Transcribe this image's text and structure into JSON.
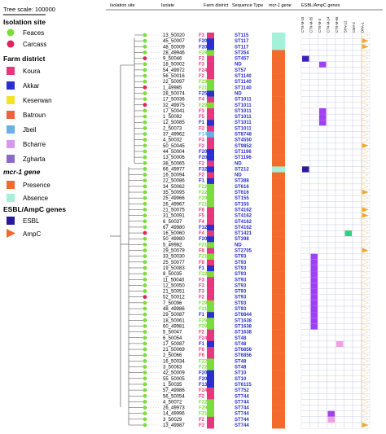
{
  "tree_scale_label": "Tree scale: 100000",
  "headers": {
    "isolation_site": "Isolation site",
    "isolate": "Isolate",
    "farm_district": "Farm district",
    "sequence_type": "Sequence Type",
    "mcr_gene": "mcr-1 gene",
    "esbl_genes": "ESBL/AmpC genes"
  },
  "gene_columns": [
    "CTX-M-15",
    "CTX-M-55",
    "CTX-M-3",
    "CTX-M-14",
    "CTX-M-65",
    "SHV-12",
    "CMY-2",
    "DHA-1"
  ],
  "colors": {
    "feaces": "#7ddc3c",
    "carcass": "#e0245e",
    "presence": "#f26b2c",
    "absence": "#a5f0d8",
    "esbl": "#2a1a9a",
    "ampc": "#f5a623",
    "esbl_blue": "#3a20c0",
    "esbl_purple": "#a040f0",
    "esbl_pink": "#f0a0e0",
    "esbl_green": "#30d080"
  },
  "legend": {
    "isolation_site": {
      "title": "Isolation site",
      "items": [
        {
          "label": "Feaces",
          "color": "#7ddc3c"
        },
        {
          "label": "Carcass",
          "color": "#e0245e"
        }
      ]
    },
    "farm_district": {
      "title": "Farm district",
      "items": [
        {
          "label": "Koura",
          "color": "#e8367e"
        },
        {
          "label": "Akkar",
          "color": "#2b2fcf"
        },
        {
          "label": "Keserwan",
          "color": "#f5e12a"
        },
        {
          "label": "Batroun",
          "color": "#f0623a"
        },
        {
          "label": "Jbeil",
          "color": "#6ab0e8"
        },
        {
          "label": "Bcharre",
          "color": "#d89ae8"
        },
        {
          "label": "Zgharta",
          "color": "#8a6cc8"
        }
      ]
    },
    "mcr_gene": {
      "title": "mcr-1 gene",
      "items": [
        {
          "label": "Presence",
          "color": "#f26b2c"
        },
        {
          "label": "Absence",
          "color": "#a5f0d8"
        }
      ]
    },
    "esbl_genes": {
      "title": "ESBL/AmpC genes",
      "items": [
        {
          "label": "ESBL",
          "color": "#2a1a9a",
          "shape": "square"
        },
        {
          "label": "AmpC",
          "color": "#f5a623",
          "shape": "triangle"
        }
      ]
    }
  },
  "farm_colors": {
    "F3": "#e8367e",
    "F20": "#2b2fcf",
    "F29": "#7ddc3c",
    "F2": "#e8367e",
    "F24": "#e8367e",
    "F21": "#7ddc3c",
    "F25": "#2b2fcf",
    "F4": "#e8367e",
    "F8": "#e8367e",
    "F5": "#e8367e",
    "F1": "#2b2fcf",
    "F14": "#6ab0e8",
    "F32": "#2b2fcf",
    "F22": "#7ddc3c",
    "F6": "#e8367e",
    "F13": "#2b2fcf"
  },
  "rows": [
    {
      "iso": "13_50020",
      "site": "feaces",
      "farm": "F3",
      "st": "ST115",
      "mcr": "absence",
      "genes": []
    },
    {
      "iso": "45_50007",
      "site": "feaces",
      "farm": "F20",
      "st": "ST117",
      "mcr": "absence",
      "genes": [
        {
          "col": 7,
          "t": "ampc"
        }
      ]
    },
    {
      "iso": "48_50009",
      "site": "feaces",
      "farm": "F20",
      "st": "ST117",
      "mcr": "absence",
      "genes": [
        {
          "col": 7,
          "t": "ampc"
        }
      ]
    },
    {
      "iso": "28_49946",
      "site": "feaces",
      "farm": "F29",
      "st": "ST354",
      "mcr": "presence",
      "genes": []
    },
    {
      "iso": "9_50046",
      "site": "carcass",
      "farm": "F2",
      "st": "ST457",
      "mcr": "presence",
      "genes": [
        {
          "col": 0,
          "t": "esbl_blue"
        }
      ]
    },
    {
      "iso": "18_50002",
      "site": "feaces",
      "farm": "F3",
      "st": "ND",
      "mcr": "presence",
      "genes": [
        {
          "col": 2,
          "t": "esbl_purple"
        }
      ]
    },
    {
      "iso": "54_49972",
      "site": "feaces",
      "farm": "F24",
      "st": "ST57",
      "mcr": "presence",
      "genes": []
    },
    {
      "iso": "56_50016",
      "site": "feaces",
      "farm": "F2",
      "st": "ST1140",
      "mcr": "presence",
      "genes": []
    },
    {
      "iso": "22_50097",
      "site": "feaces",
      "farm": "F29",
      "st": "ST1140",
      "mcr": "presence",
      "genes": []
    },
    {
      "iso": "1_49985",
      "site": "carcass",
      "farm": "F21",
      "st": "ST1140",
      "mcr": "presence",
      "genes": []
    },
    {
      "iso": "28_50074",
      "site": "feaces",
      "farm": "F25",
      "st": "ND",
      "mcr": "presence",
      "genes": []
    },
    {
      "iso": "17_50036",
      "site": "feaces",
      "farm": "F4",
      "st": "ST1011",
      "mcr": "presence",
      "genes": []
    },
    {
      "iso": "32_49975",
      "site": "carcass",
      "farm": "F29",
      "st": "ST1011",
      "mcr": "presence",
      "genes": []
    },
    {
      "iso": "17_50041",
      "site": "feaces",
      "farm": "F3",
      "st": "ST1011",
      "mcr": "presence",
      "genes": [
        {
          "col": 2,
          "t": "esbl_purple"
        }
      ]
    },
    {
      "iso": "1_50092",
      "site": "feaces",
      "farm": "F5",
      "st": "ST1011",
      "mcr": "presence",
      "genes": [
        {
          "col": 2,
          "t": "esbl_purple"
        }
      ]
    },
    {
      "iso": "12_50085",
      "site": "feaces",
      "farm": "F1",
      "st": "ST1011",
      "mcr": "presence",
      "genes": [
        {
          "col": 2,
          "t": "esbl_purple"
        }
      ]
    },
    {
      "iso": "2_50073",
      "site": "feaces",
      "farm": "F2",
      "st": "ST1011",
      "mcr": "presence",
      "genes": []
    },
    {
      "iso": "37_49962",
      "site": "feaces",
      "farm": "F14",
      "st": "ST8748",
      "mcr": "presence",
      "genes": []
    },
    {
      "iso": "4_50032",
      "site": "feaces",
      "farm": "F3",
      "st": "ST4550",
      "mcr": "presence",
      "genes": []
    },
    {
      "iso": "50_50045",
      "site": "feaces",
      "farm": "F2",
      "st": "ST9852",
      "mcr": "presence",
      "genes": [
        {
          "col": 7,
          "t": "ampc"
        }
      ]
    },
    {
      "iso": "44_50004",
      "site": "feaces",
      "farm": "F20",
      "st": "ST1196",
      "mcr": "presence",
      "genes": []
    },
    {
      "iso": "13_50006",
      "site": "feaces",
      "farm": "F20",
      "st": "ST1196",
      "mcr": "presence",
      "genes": []
    },
    {
      "iso": "38_50065",
      "site": "feaces",
      "farm": "F2",
      "st": "ND",
      "mcr": "presence",
      "genes": []
    },
    {
      "iso": "66_49977",
      "site": "feaces",
      "farm": "F32",
      "st": "ST212",
      "mcr": "absence",
      "genes": [
        {
          "col": 0,
          "t": "esbl"
        }
      ]
    },
    {
      "iso": "16_50094",
      "site": "feaces",
      "farm": "F2",
      "st": "ND",
      "mcr": "presence",
      "genes": []
    },
    {
      "iso": "22_50086",
      "site": "feaces",
      "farm": "F1",
      "st": "ST388",
      "mcr": "presence",
      "genes": []
    },
    {
      "iso": "34_50062",
      "site": "feaces",
      "farm": "F22",
      "st": "ST616",
      "mcr": "presence",
      "genes": []
    },
    {
      "iso": "35_50095",
      "site": "feaces",
      "farm": "F22",
      "st": "ST616",
      "mcr": "presence",
      "genes": [
        {
          "col": 7,
          "t": "ampc"
        }
      ]
    },
    {
      "iso": "25_49966",
      "site": "feaces",
      "farm": "F29",
      "st": "ST155",
      "mcr": "presence",
      "genes": []
    },
    {
      "iso": "26_49967",
      "site": "feaces",
      "farm": "F21",
      "st": "ST155",
      "mcr": "presence",
      "genes": []
    },
    {
      "iso": "21_50075",
      "site": "feaces",
      "farm": "F8",
      "st": "ST4162",
      "mcr": "presence",
      "genes": [
        {
          "col": 7,
          "t": "ampc"
        }
      ]
    },
    {
      "iso": "31_50091",
      "site": "feaces",
      "farm": "F5",
      "st": "ST4162",
      "mcr": "presence",
      "genes": [
        {
          "col": 7,
          "t": "ampc"
        }
      ]
    },
    {
      "iso": "6_50037",
      "site": "feaces",
      "farm": "F4",
      "st": "ST4162",
      "mcr": "presence",
      "genes": []
    },
    {
      "iso": "67_49980",
      "site": "feaces",
      "farm": "F32",
      "st": "ST4162",
      "mcr": "presence",
      "genes": []
    },
    {
      "iso": "16_50060",
      "site": "carcass",
      "farm": "F4",
      "st": "ST1421",
      "mcr": "presence",
      "genes": [
        {
          "col": 5,
          "t": "esbl_green"
        }
      ]
    },
    {
      "iso": "50_49980",
      "site": "feaces",
      "farm": "F20",
      "st": "ST398",
      "mcr": "presence",
      "genes": []
    },
    {
      "iso": "5_49982",
      "site": "feaces",
      "farm": "F21",
      "st": "ND",
      "mcr": "presence",
      "genes": []
    },
    {
      "iso": "29_50079",
      "site": "feaces",
      "farm": "F8",
      "st": "ST2705",
      "mcr": "presence",
      "genes": [
        {
          "col": 7,
          "t": "ampc"
        }
      ]
    },
    {
      "iso": "33_50030",
      "site": "feaces",
      "farm": "F21",
      "st": "ST93",
      "mcr": "presence",
      "genes": [
        {
          "col": 1,
          "t": "esbl_purple"
        }
      ]
    },
    {
      "iso": "25_50077",
      "site": "feaces",
      "farm": "F8",
      "st": "ST93",
      "mcr": "presence",
      "genes": [
        {
          "col": 1,
          "t": "esbl_purple"
        }
      ]
    },
    {
      "iso": "19_50083",
      "site": "feaces",
      "farm": "F1",
      "st": "ST93",
      "mcr": "presence",
      "genes": [
        {
          "col": 1,
          "t": "esbl_purple"
        }
      ]
    },
    {
      "iso": "8_50035",
      "site": "feaces",
      "farm": "F22",
      "st": "ST93",
      "mcr": "presence",
      "genes": [
        {
          "col": 1,
          "t": "esbl_purple"
        }
      ]
    },
    {
      "iso": "11_50040",
      "site": "feaces",
      "farm": "F3",
      "st": "ST93",
      "mcr": "presence",
      "genes": [
        {
          "col": 1,
          "t": "esbl_purple"
        }
      ]
    },
    {
      "iso": "12_50050",
      "site": "feaces",
      "farm": "F3",
      "st": "ST93",
      "mcr": "presence",
      "genes": [
        {
          "col": 1,
          "t": "esbl_purple"
        }
      ]
    },
    {
      "iso": "21_50051",
      "site": "feaces",
      "farm": "F3",
      "st": "ST93",
      "mcr": "presence",
      "genes": [
        {
          "col": 1,
          "t": "esbl_purple"
        }
      ]
    },
    {
      "iso": "52_50012",
      "site": "carcass",
      "farm": "F2",
      "st": "ST93",
      "mcr": "presence",
      "genes": [
        {
          "col": 1,
          "t": "esbl_purple"
        }
      ]
    },
    {
      "iso": "7_50096",
      "site": "feaces",
      "farm": "F29",
      "st": "ST93",
      "mcr": "presence",
      "genes": [
        {
          "col": 1,
          "t": "esbl_purple"
        }
      ]
    },
    {
      "iso": "48_49986",
      "site": "feaces",
      "farm": "F21",
      "st": "ST93",
      "mcr": "presence",
      "genes": [
        {
          "col": 1,
          "t": "esbl_purple"
        }
      ]
    },
    {
      "iso": "29_50087",
      "site": "feaces",
      "farm": "F1",
      "st": "ST6844",
      "mcr": "presence",
      "genes": [
        {
          "col": 1,
          "t": "esbl_purple"
        }
      ]
    },
    {
      "iso": "18_50061",
      "site": "feaces",
      "farm": "F29",
      "st": "ST1638",
      "mcr": "presence",
      "genes": [
        {
          "col": 1,
          "t": "esbl_purple"
        }
      ]
    },
    {
      "iso": "60_49981",
      "site": "feaces",
      "farm": "F29",
      "st": "ST1638",
      "mcr": "presence",
      "genes": [
        {
          "col": 1,
          "t": "esbl_purple"
        }
      ]
    },
    {
      "iso": "5_50047",
      "site": "feaces",
      "farm": "F2",
      "st": "ST1638",
      "mcr": "presence",
      "genes": []
    },
    {
      "iso": "6_50054",
      "site": "feaces",
      "farm": "F24",
      "st": "ST48",
      "mcr": "presence",
      "genes": []
    },
    {
      "iso": "17_50087",
      "site": "feaces",
      "farm": "F1",
      "st": "ST48",
      "mcr": "presence",
      "genes": [
        {
          "col": 4,
          "t": "esbl_pink"
        }
      ]
    },
    {
      "iso": "21_50069",
      "site": "feaces",
      "farm": "F6",
      "st": "ST6856",
      "mcr": "presence",
      "genes": []
    },
    {
      "iso": "2_50066",
      "site": "feaces",
      "farm": "F6",
      "st": "ST6856",
      "mcr": "presence",
      "genes": []
    },
    {
      "iso": "16_50034",
      "site": "feaces",
      "farm": "F22",
      "st": "ST48",
      "mcr": "presence",
      "genes": []
    },
    {
      "iso": "3_50063",
      "site": "feaces",
      "farm": "F22",
      "st": "ST48",
      "mcr": "presence",
      "genes": []
    },
    {
      "iso": "42_50009",
      "site": "feaces",
      "farm": "F20",
      "st": "ST10",
      "mcr": "presence",
      "genes": []
    },
    {
      "iso": "55_50005",
      "site": "feaces",
      "farm": "F20",
      "st": "ST10",
      "mcr": "presence",
      "genes": []
    },
    {
      "iso": "1_50035",
      "site": "feaces",
      "farm": "F13",
      "st": "ST6115",
      "mcr": "presence",
      "genes": []
    },
    {
      "iso": "57_49986",
      "site": "feaces",
      "farm": "F24",
      "st": "ST752",
      "mcr": "presence",
      "genes": []
    },
    {
      "iso": "56_50054",
      "site": "feaces",
      "farm": "F2",
      "st": "ST744",
      "mcr": "presence",
      "genes": []
    },
    {
      "iso": "4_50072",
      "site": "feaces",
      "farm": "F22",
      "st": "ST744",
      "mcr": "presence",
      "genes": []
    },
    {
      "iso": "26_49973",
      "site": "feaces",
      "farm": "F29",
      "st": "ST744",
      "mcr": "presence",
      "genes": []
    },
    {
      "iso": "14_49996",
      "site": "feaces",
      "farm": "F21",
      "st": "ST744",
      "mcr": "presence",
      "genes": [
        {
          "col": 3,
          "t": "esbl_purple"
        }
      ]
    },
    {
      "iso": "3_50029",
      "site": "feaces",
      "farm": "F2",
      "st": "ST744",
      "mcr": "presence",
      "genes": [
        {
          "col": 3,
          "t": "esbl_pink"
        }
      ]
    },
    {
      "iso": "13_49987",
      "site": "feaces",
      "farm": "F3",
      "st": "ST744",
      "mcr": "presence",
      "genes": [
        {
          "col": 7,
          "t": "ampc"
        }
      ]
    }
  ]
}
